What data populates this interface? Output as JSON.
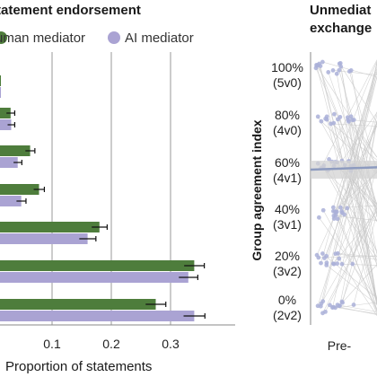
{
  "colors": {
    "human": "#4e7d3c",
    "ai": "#aaa3d3",
    "error": "#111111",
    "grid": "#9a9a9a",
    "dot": "#aab0d8",
    "line": "#c9c9c9",
    "band": "#d3d3d3",
    "trend": "#8d9bbf"
  },
  "left_panel": {
    "title": "tatement endorsement",
    "legend": [
      {
        "label": "uman mediator",
        "series": "human"
      },
      {
        "label": "AI mediator",
        "series": "ai"
      }
    ],
    "xlabel": "Proportion of statements",
    "xticks": [
      "0.1",
      "0.2",
      "0.3"
    ]
  },
  "right_panel": {
    "title_line1": "Unmediat",
    "title_line2": "exchange",
    "ylabel": "Group agreement index",
    "xtick": "Pre-",
    "yticks": [
      {
        "line1": "100%",
        "line2": "(5v0)"
      },
      {
        "line1": "80%",
        "line2": "(4v0)"
      },
      {
        "line1": "60%",
        "line2": "(4v1)"
      },
      {
        "line1": "40%",
        "line2": "(3v1)"
      },
      {
        "line1": "20%",
        "line2": "(3v2)"
      },
      {
        "line1": "0%",
        "line2": "(2v2)"
      }
    ]
  },
  "chart_data": [
    {
      "type": "bar",
      "orientation": "horizontal",
      "title": "tatement endorsement",
      "xlabel": "Proportion of statements",
      "ylabel": "",
      "xlim": [
        0,
        0.36
      ],
      "grid": true,
      "legend_position": "top",
      "series": [
        {
          "name": "uman mediator",
          "key": "human",
          "values": [
            0.005,
            0.03,
            0.063,
            0.078,
            0.18,
            0.34,
            0.275
          ],
          "errors": [
            0.004,
            0.007,
            0.008,
            0.009,
            0.013,
            0.017,
            0.017
          ]
        },
        {
          "name": "AI mediator",
          "key": "ai",
          "values": [
            0.004,
            0.031,
            0.042,
            0.048,
            0.16,
            0.33,
            0.34
          ],
          "errors": [
            0.004,
            0.006,
            0.007,
            0.008,
            0.014,
            0.016,
            0.018
          ]
        }
      ]
    },
    {
      "type": "scatter",
      "title": "Unmediat exchange",
      "xlabel": "",
      "ylabel": "Group agreement index",
      "ylim": [
        0,
        1
      ],
      "x_categories": [
        "Pre-"
      ],
      "y_levels": [
        0,
        0.2,
        0.4,
        0.6,
        0.8,
        1.0
      ],
      "trend_means": [
        0.575,
        0.585
      ]
    }
  ]
}
